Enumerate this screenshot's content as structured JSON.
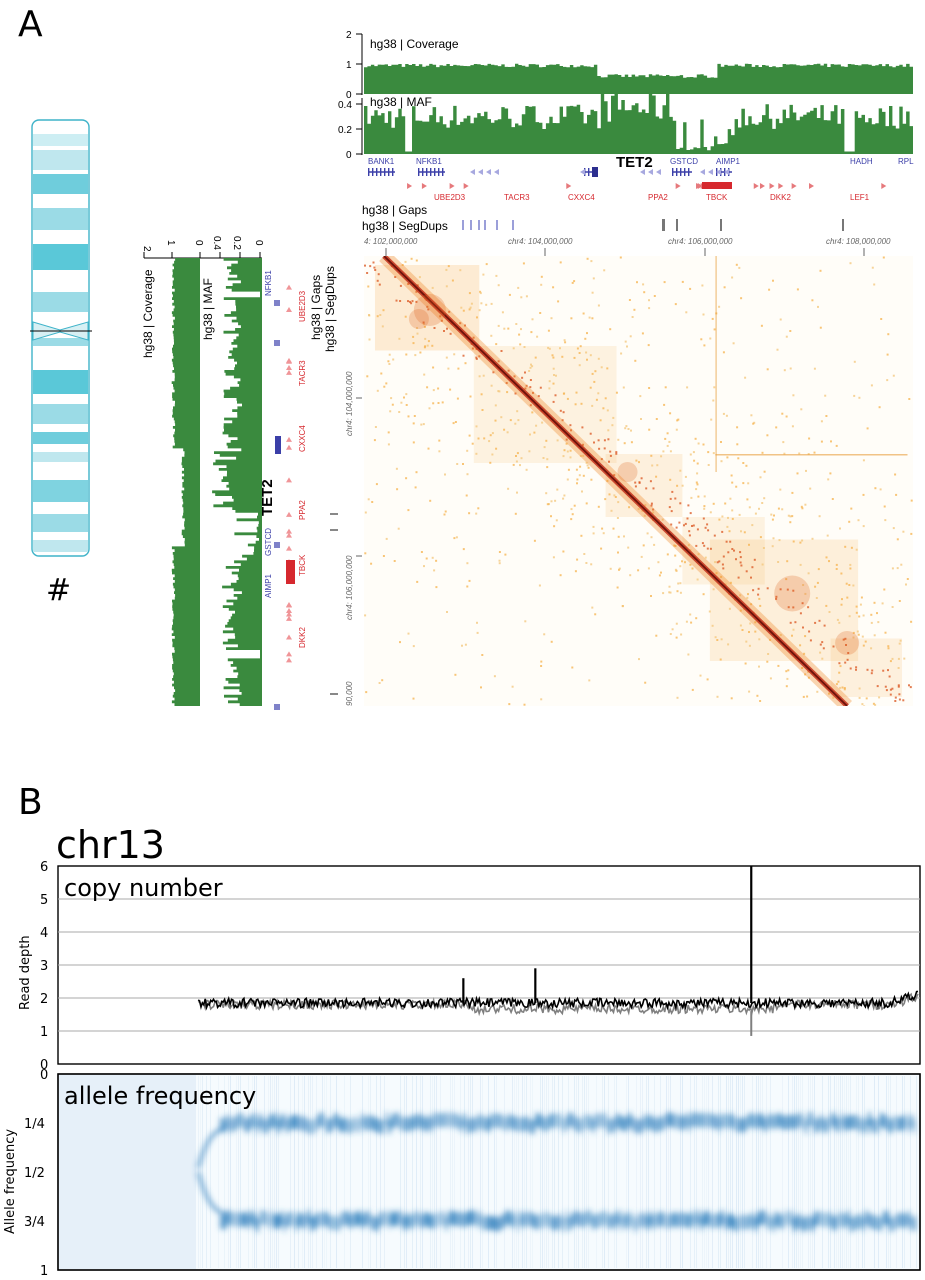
{
  "panel_a": {
    "letter": "A",
    "chrom_symbol": "#",
    "coverage_label": "hg38 | Coverage",
    "maf_label": "hg38 | MAF",
    "gaps_label": "hg38 | Gaps",
    "segdups_label": "hg38 | SegDups",
    "coverage_ticks": [
      "2",
      "1",
      "0"
    ],
    "maf_ticks": [
      "0.4",
      "0.2",
      "0"
    ],
    "highlight_gene": "TET2",
    "coords": [
      "4: 102,000,000",
      "chr4: 104,000,000",
      "chr4: 106,000,000",
      "chr4: 108,000,000"
    ],
    "coords_side": [
      "chr4: 104,000,000",
      "chr4: 106,000,000",
      "90,000"
    ],
    "genes_top_blue": [
      "BANK1",
      "NFKB1",
      "GSTCD",
      "AIMP1",
      "HADH",
      "RPL"
    ],
    "genes_top_red": [
      "UBE2D3",
      "TACR3",
      "CXXC4",
      "PPA2",
      "TBCK",
      "DKK2",
      "LEF1"
    ],
    "genes_side_blue": [
      "NFKB1",
      "GSTCD",
      "AIMP1"
    ],
    "genes_side_red": [
      "UBE2D3",
      "TACR3",
      "CXXC4",
      "PPA2",
      "TBCK",
      "DKK2"
    ],
    "colors": {
      "track_green": "#3a8a3e",
      "gene_blue": "#3b3fa8",
      "gene_red": "#d6282e",
      "hic_dark": "#8b1a10",
      "hic_light": "#f6b24c",
      "ideogram": "#5ac8d8"
    }
  },
  "panel_b": {
    "letter": "B",
    "chrom": "chr13",
    "copy_label": "copy number",
    "af_label": "allele frequency",
    "colors": {
      "series_black": "#000000",
      "series_gray": "#7f7f7f",
      "af_blue": "#1f6fb0",
      "af_bg": "#e7f1fa"
    }
  },
  "chart_data": [
    {
      "type": "line",
      "title": "copy number",
      "ylabel": "Read depth",
      "ylim": [
        0,
        6
      ],
      "yticks": [
        "0",
        "1",
        "2",
        "3",
        "4",
        "5",
        "6"
      ],
      "grid": true,
      "x_start_fraction": 0.23,
      "series": [
        {
          "color": "#000000",
          "baseline": 1.85,
          "spikes": [
            {
              "at": 0.81,
              "value": 6
            },
            {
              "at": 0.51,
              "value": 2.9
            },
            {
              "at": 0.41,
              "value": 2.6
            }
          ]
        },
        {
          "color": "#7f7f7f",
          "baseline": 1.8,
          "segment": {
            "from": 0.47,
            "to": 0.81,
            "value": 1.55
          }
        }
      ]
    },
    {
      "type": "heatmap",
      "title": "allele frequency",
      "ylabel": "Allele frequency",
      "yticks": [
        "0",
        "1/4",
        "1/2",
        "3/4",
        "1"
      ],
      "x_start_fraction": 0.23,
      "bands": [
        0.25,
        0.75
      ]
    }
  ]
}
